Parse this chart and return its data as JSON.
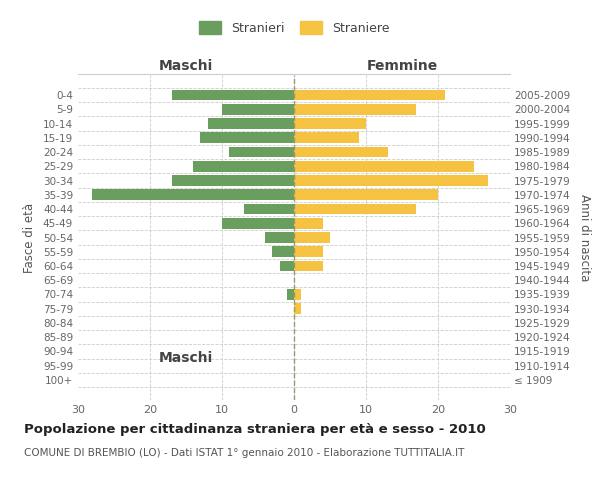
{
  "age_groups": [
    "100+",
    "95-99",
    "90-94",
    "85-89",
    "80-84",
    "75-79",
    "70-74",
    "65-69",
    "60-64",
    "55-59",
    "50-54",
    "45-49",
    "40-44",
    "35-39",
    "30-34",
    "25-29",
    "20-24",
    "15-19",
    "10-14",
    "5-9",
    "0-4"
  ],
  "birth_years": [
    "≤ 1909",
    "1910-1914",
    "1915-1919",
    "1920-1924",
    "1925-1929",
    "1930-1934",
    "1935-1939",
    "1940-1944",
    "1945-1949",
    "1950-1954",
    "1955-1959",
    "1960-1964",
    "1965-1969",
    "1970-1974",
    "1975-1979",
    "1980-1984",
    "1985-1989",
    "1990-1994",
    "1995-1999",
    "2000-2004",
    "2005-2009"
  ],
  "maschi": [
    0,
    0,
    0,
    0,
    0,
    0,
    1,
    0,
    2,
    3,
    4,
    10,
    7,
    28,
    17,
    14,
    9,
    13,
    12,
    10,
    17
  ],
  "femmine": [
    0,
    0,
    0,
    0,
    0,
    1,
    1,
    0,
    4,
    4,
    5,
    4,
    17,
    20,
    27,
    25,
    13,
    9,
    10,
    17,
    21
  ],
  "male_color": "#6a9e5e",
  "female_color": "#f5c242",
  "title": "Popolazione per cittadinanza straniera per età e sesso - 2010",
  "subtitle": "COMUNE DI BREMBIO (LO) - Dati ISTAT 1° gennaio 2010 - Elaborazione TUTTITALIA.IT",
  "left_label": "Maschi",
  "right_label": "Femmine",
  "ylabel_left": "Fasce di età",
  "ylabel_right": "Anni di nascita",
  "legend_male": "Stranieri",
  "legend_female": "Straniere",
  "xlim": 30,
  "bg_color": "#ffffff",
  "grid_color": "#cccccc"
}
